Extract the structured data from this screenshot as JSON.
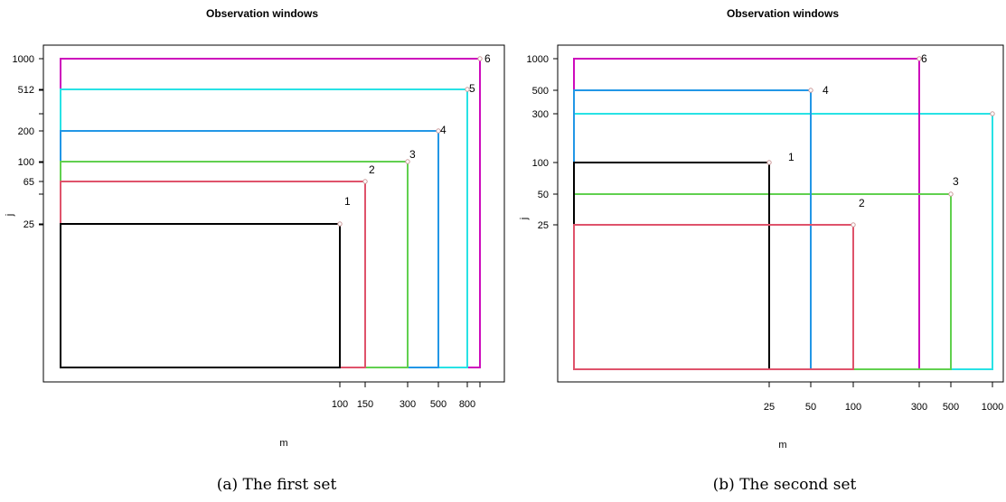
{
  "chart_data": [
    {
      "type": "line",
      "title": "Observation windows",
      "xlabel": "m",
      "ylabel": "j",
      "caption": "(a) The first set",
      "x_ticks": [
        "100",
        "150",
        "300",
        "500",
        "800"
      ],
      "y_ticks": [
        "25",
        "65",
        "100",
        "200",
        "512",
        "1000"
      ],
      "windows": [
        {
          "label": "1",
          "m": 100,
          "j": 25,
          "color": "#000000"
        },
        {
          "label": "2",
          "m": 150,
          "j": 65,
          "color": "#df536b"
        },
        {
          "label": "3",
          "m": 300,
          "j": 100,
          "color": "#61d04f"
        },
        {
          "label": "4",
          "m": 500,
          "j": 200,
          "color": "#2297e6"
        },
        {
          "label": "5",
          "m": 800,
          "j": 512,
          "color": "#28e2e5"
        },
        {
          "label": "6",
          "m": 1000,
          "j": 1000,
          "color": "#cd0bbc"
        }
      ]
    },
    {
      "type": "line",
      "title": "Observation windows",
      "xlabel": "m",
      "ylabel": "j",
      "caption": "(b) The second set",
      "x_ticks": [
        "25",
        "50",
        "100",
        "300",
        "500",
        "1000"
      ],
      "y_ticks": [
        "25",
        "50",
        "100",
        "300",
        "500",
        "1000"
      ],
      "windows": [
        {
          "label": "1",
          "m": 25,
          "j": 100,
          "color": "#000000"
        },
        {
          "label": "2",
          "m": 100,
          "j": 25,
          "color": "#df536b"
        },
        {
          "label": "3",
          "m": 500,
          "j": 50,
          "color": "#61d04f"
        },
        {
          "label": "4",
          "m": 50,
          "j": 500,
          "color": "#2297e6"
        },
        {
          "label": "5",
          "m": 1000,
          "j": 300,
          "color": "#28e2e5"
        },
        {
          "label": "6",
          "m": 300,
          "j": 1000,
          "color": "#cd0bbc"
        }
      ]
    }
  ]
}
